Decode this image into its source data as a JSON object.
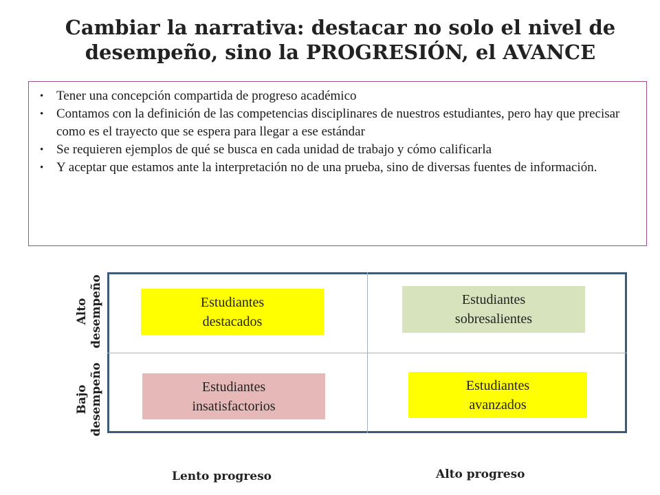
{
  "title": {
    "line1": "Cambiar la narrativa: destacar no solo el nivel de",
    "line2": "desempeño, sino la PROGRESIÓN, el AVANCE"
  },
  "bullets": [
    "Tener una concepción compartida de progreso académico",
    "Contamos con la definición de las competencias disciplinares de nuestros estudiantes, pero hay que precisar como es el trayecto que se espera para llegar a ese estándar",
    "Se requieren ejemplos de qué se busca en cada unidad de trabajo y cómo calificarla",
    "Y aceptar que estamos ante la interpretación no de una prueba, sino de diversas fuentes de información."
  ],
  "matrix": {
    "quadrants": {
      "top_left": {
        "line1": "Estudiantes",
        "line2": "destacados",
        "color": "#ffff00"
      },
      "top_right": {
        "line1": "Estudiantes",
        "line2": "sobresalientes",
        "color": "#d6e3bc"
      },
      "bottom_left": {
        "line1": "Estudiantes",
        "line2": "insatisfactorios",
        "color": "#e6b9b8"
      },
      "bottom_right": {
        "line1": "Estudiantes",
        "line2": "avanzados",
        "color": "#ffff00"
      }
    },
    "y_axis": {
      "high": {
        "line1": "Alto",
        "line2": "desempeño"
      },
      "low": {
        "line1": "Bajo",
        "line2": "desempeño"
      }
    },
    "x_axis": {
      "low": "Lento progreso",
      "high": "Alto progreso"
    }
  }
}
